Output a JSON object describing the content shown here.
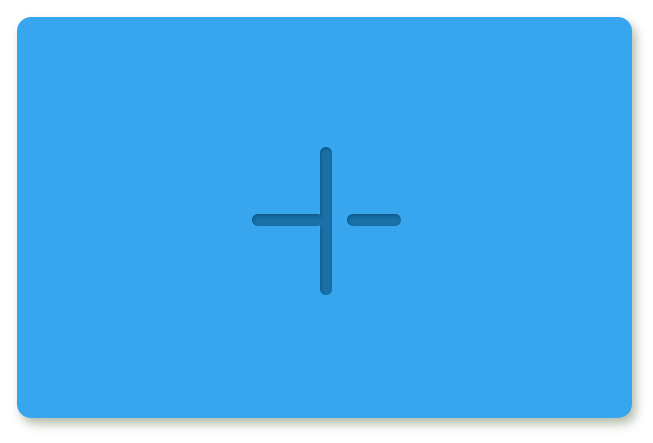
{
  "card": {
    "icon": "plus-icon",
    "background_color": "#38a5ef",
    "icon_color": "#1b6fa8"
  }
}
